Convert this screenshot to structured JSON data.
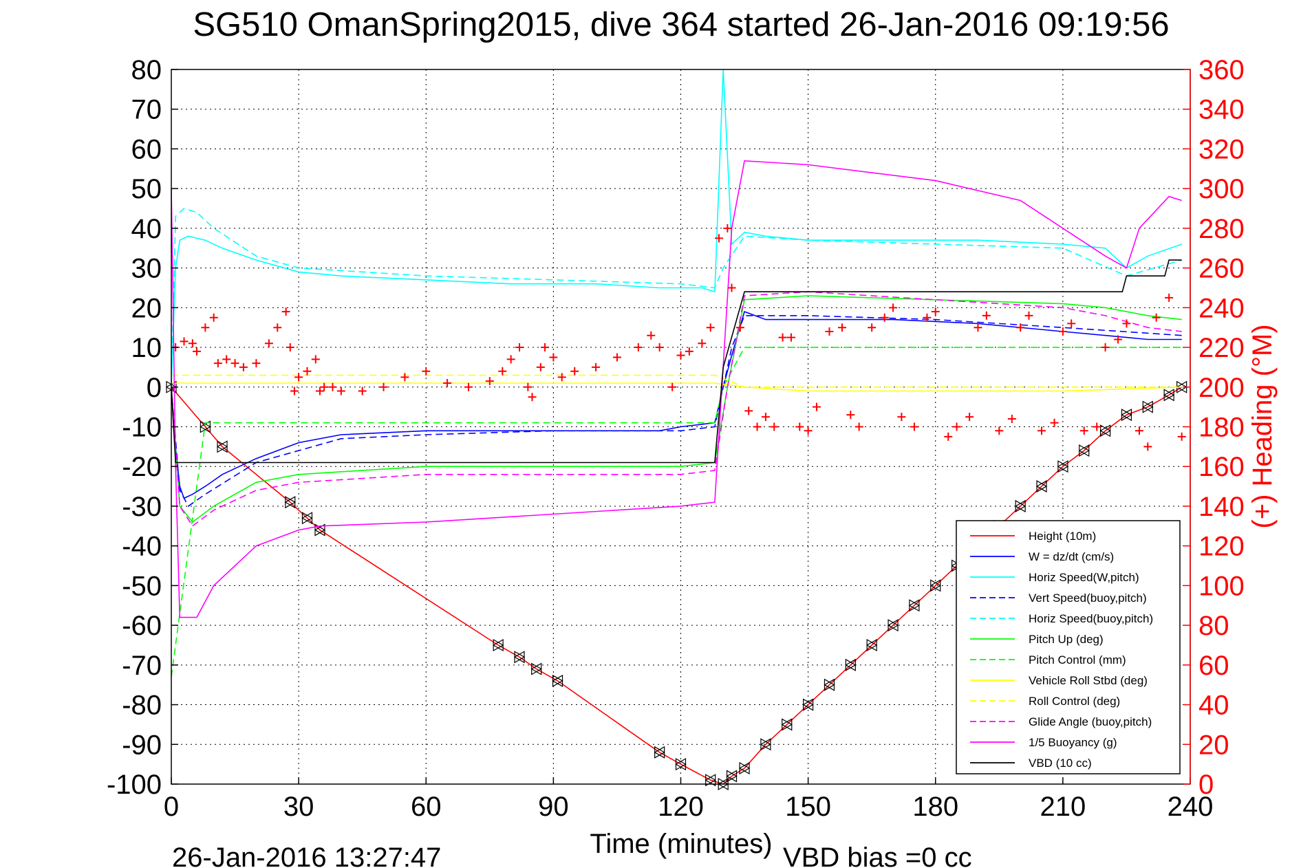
{
  "chart_data": {
    "type": "line",
    "title": "SG510 OmanSpring2015, dive 364 started 26-Jan-2016 09:19:56",
    "xlabel": "Time (minutes)",
    "ylabel": "",
    "y2label": "(+) Heading (°M)",
    "footer_left": "26-Jan-2016 13:27:47",
    "footer_right": "VBD bias =0 cc",
    "xlim": [
      0,
      240
    ],
    "ylim": [
      -100,
      80
    ],
    "y2lim": [
      0,
      360
    ],
    "grid": true,
    "legend_position": "bottom-right",
    "xticks": [
      "0",
      "30",
      "60",
      "90",
      "120",
      "150",
      "180",
      "210",
      "240"
    ],
    "yticks": [
      "80",
      "70",
      "60",
      "50",
      "40",
      "30",
      "20",
      "10",
      "0",
      "-10",
      "-20",
      "-30",
      "-40",
      "-50",
      "-60",
      "-70",
      "-80",
      "-90",
      "-100"
    ],
    "y2ticks": [
      "360",
      "340",
      "320",
      "300",
      "280",
      "260",
      "240",
      "220",
      "200",
      "180",
      "160",
      "140",
      "120",
      "100",
      "80",
      "60",
      "40",
      "20",
      "0"
    ],
    "colors": {
      "height": "#ff0000",
      "w": "#0000ff",
      "horiz_speed": "#00ffff",
      "vert_speed_buoy": "#0000ff",
      "horiz_speed_buoy": "#00ffff",
      "pitch_up": "#00ff00",
      "pitch_control": "#00ff00",
      "roll": "#ffff00",
      "roll_control": "#ffff00",
      "glide_angle": "#ff00ff",
      "buoyancy": "#ff00ff",
      "vbd": "#000000",
      "heading": "#ff0000",
      "axis_right": "#ff0000"
    },
    "legend": [
      {
        "label": "Height (10m)",
        "color": "#ff0000",
        "dash": false
      },
      {
        "label": "W = dz/dt (cm/s)",
        "color": "#0000ff",
        "dash": false
      },
      {
        "label": "Horiz Speed(W,pitch)",
        "color": "#00ffff",
        "dash": false
      },
      {
        "label": "Vert Speed(buoy,pitch)",
        "color": "#0000ff",
        "dash": true
      },
      {
        "label": "Horiz Speed(buoy,pitch)",
        "color": "#00ffff",
        "dash": true
      },
      {
        "label": "Pitch Up (deg)",
        "color": "#00ff00",
        "dash": false
      },
      {
        "label": "Pitch Control (mm)",
        "color": "#00ff00",
        "dash": true
      },
      {
        "label": "Vehicle Roll Stbd (deg)",
        "color": "#ffff00",
        "dash": false
      },
      {
        "label": "Roll Control (deg)",
        "color": "#ffff00",
        "dash": true
      },
      {
        "label": "Glide Angle (buoy,pitch)",
        "color": "#ff00ff",
        "dash": true
      },
      {
        "label": "1/5 Buoyancy (g)",
        "color": "#ff00ff",
        "dash": false
      },
      {
        "label": "VBD (10 cc)",
        "color": "#000000",
        "dash": false
      }
    ],
    "series": [
      {
        "name": "Height (10m)",
        "axis": "left",
        "x": [
          0,
          8,
          12,
          28,
          32,
          35,
          77,
          82,
          86,
          91,
          115,
          120,
          127,
          130,
          132,
          135,
          140,
          145,
          150,
          155,
          160,
          165,
          170,
          175,
          180,
          185,
          190,
          195,
          200,
          205,
          210,
          215,
          220,
          225,
          230,
          235,
          238
        ],
        "y": [
          0,
          -10,
          -15,
          -29,
          -33,
          -36,
          -65,
          -68,
          -71,
          -74,
          -92,
          -95,
          -99,
          -100,
          -98,
          -96,
          -90,
          -85,
          -80,
          -75,
          -70,
          -65,
          -60,
          -55,
          -50,
          -45,
          -40,
          -35,
          -30,
          -25,
          -20,
          -16,
          -11,
          -7,
          -5,
          -2,
          0
        ]
      },
      {
        "name": "W = dz/dt (cm/s)",
        "axis": "left",
        "x": [
          0,
          1,
          2,
          3,
          5,
          8,
          12,
          20,
          30,
          40,
          60,
          80,
          100,
          115,
          120,
          128,
          130,
          132,
          135,
          140,
          150,
          170,
          190,
          210,
          220,
          230,
          238
        ],
        "y": [
          0,
          -15,
          -25,
          -28,
          -27,
          -25,
          -22,
          -18,
          -14,
          -12,
          -11,
          -11,
          -11,
          -11,
          -10,
          -9,
          0,
          8,
          19,
          17,
          17,
          17,
          16,
          14,
          13,
          12,
          12
        ]
      },
      {
        "name": "Horiz Speed(W,pitch)",
        "axis": "left",
        "x": [
          0,
          1,
          2,
          4,
          8,
          12,
          20,
          30,
          40,
          60,
          80,
          100,
          115,
          125,
          128,
          130,
          132,
          135,
          140,
          150,
          170,
          190,
          210,
          220,
          225,
          230,
          238
        ],
        "y": [
          0,
          30,
          37,
          38,
          37,
          35,
          32,
          29,
          28,
          27,
          26,
          26,
          25,
          25,
          24,
          80,
          36,
          39,
          38,
          37,
          37,
          37,
          36,
          35,
          30,
          33,
          36
        ]
      },
      {
        "name": "Vert Speed(buoy,pitch)",
        "axis": "left",
        "x": [
          0,
          2,
          4,
          8,
          20,
          40,
          60,
          90,
          120,
          128,
          132,
          135,
          150,
          180,
          210,
          238
        ],
        "y": [
          0,
          -26,
          -30,
          -27,
          -19,
          -13,
          -12,
          -11,
          -11,
          -10,
          10,
          18,
          18,
          17,
          15,
          13
        ]
      },
      {
        "name": "Horiz Speed(buoy,pitch)",
        "axis": "left",
        "x": [
          0,
          1,
          3,
          6,
          10,
          20,
          30,
          60,
          90,
          120,
          128,
          130,
          135,
          150,
          180,
          210,
          225,
          238
        ],
        "y": [
          0,
          43,
          45,
          44,
          40,
          33,
          30,
          28,
          27,
          26,
          25,
          30,
          38,
          37,
          36,
          35,
          28,
          32
        ]
      },
      {
        "name": "Pitch Up (deg)",
        "axis": "left",
        "x": [
          0,
          2,
          5,
          10,
          20,
          30,
          60,
          90,
          120,
          128,
          131,
          135,
          150,
          180,
          210,
          220,
          230,
          238
        ],
        "y": [
          0,
          -30,
          -34,
          -30,
          -24,
          -22,
          -20,
          -20,
          -20,
          -19,
          0,
          22,
          23,
          22,
          21,
          20,
          18,
          17
        ]
      },
      {
        "name": "Pitch Control (mm)",
        "axis": "left",
        "x": [
          0,
          8,
          30,
          60,
          90,
          128,
          130,
          135,
          150,
          180,
          210,
          238
        ],
        "y": [
          -73,
          -9,
          -9,
          -9,
          -9,
          -9,
          0,
          10,
          10,
          10,
          10,
          10
        ]
      },
      {
        "name": "Vehicle Roll Stbd (deg)",
        "axis": "left",
        "x": [
          0,
          30,
          60,
          90,
          120,
          128,
          135,
          150,
          180,
          210,
          238
        ],
        "y": [
          1,
          1,
          1,
          1,
          1,
          1,
          0,
          -1,
          -1,
          -1,
          0
        ]
      },
      {
        "name": "Roll Control (deg)",
        "axis": "left",
        "x": [
          0,
          60,
          128,
          135,
          180,
          238
        ],
        "y": [
          3,
          3,
          3,
          0,
          0,
          0
        ]
      },
      {
        "name": "Glide Angle (buoy,pitch)",
        "axis": "left",
        "x": [
          0,
          2,
          5,
          10,
          20,
          30,
          60,
          90,
          120,
          128,
          131,
          135,
          150,
          180,
          210,
          220,
          230,
          238
        ],
        "y": [
          0,
          -30,
          -35,
          -31,
          -26,
          -24,
          -22,
          -22,
          -22,
          -21,
          0,
          23,
          24,
          22,
          20,
          18,
          15,
          14
        ]
      },
      {
        "name": "1/5 Buoyancy (g)",
        "axis": "left",
        "x": [
          0,
          1,
          2,
          6,
          10,
          20,
          30,
          35,
          60,
          90,
          120,
          128,
          132,
          135,
          150,
          180,
          200,
          210,
          220,
          225,
          228,
          235,
          238
        ],
        "y": [
          50,
          -20,
          -58,
          -58,
          -50,
          -40,
          -36,
          -35,
          -34,
          -32,
          -30,
          -29,
          40,
          57,
          56,
          52,
          47,
          40,
          33,
          30,
          40,
          48,
          47
        ]
      },
      {
        "name": "VBD (10 cc)",
        "axis": "left",
        "x": [
          0,
          1,
          30,
          60,
          90,
          120,
          128,
          130,
          135,
          150,
          180,
          210,
          220,
          224,
          225,
          234,
          235,
          238
        ],
        "y": [
          0,
          -19,
          -19,
          -19,
          -19,
          -19,
          -19,
          5,
          24,
          24,
          24,
          24,
          24,
          24,
          28,
          28,
          32,
          32
        ]
      },
      {
        "name": "(+) Heading (°M)",
        "axis": "right",
        "marker": "+",
        "line": false,
        "x": [
          1,
          3,
          5,
          6,
          8,
          10,
          11,
          13,
          15,
          17,
          20,
          23,
          25,
          27,
          28,
          29,
          30,
          32,
          34,
          35,
          36,
          38,
          40,
          45,
          50,
          55,
          60,
          65,
          70,
          75,
          78,
          80,
          82,
          84,
          85,
          87,
          88,
          90,
          92,
          95,
          100,
          105,
          110,
          113,
          115,
          118,
          120,
          122,
          125,
          127,
          129,
          131,
          132,
          134,
          136,
          138,
          140,
          142,
          144,
          146,
          148,
          150,
          152,
          155,
          158,
          160,
          162,
          165,
          168,
          170,
          172,
          175,
          178,
          180,
          183,
          185,
          188,
          190,
          192,
          195,
          198,
          200,
          202,
          205,
          208,
          210,
          212,
          215,
          218,
          220,
          223,
          225,
          228,
          230,
          232,
          235,
          238
        ],
        "y": [
          220,
          223,
          222,
          218,
          230,
          235,
          212,
          214,
          212,
          210,
          212,
          222,
          230,
          238,
          220,
          198,
          205,
          208,
          214,
          198,
          200,
          200,
          198,
          198,
          200,
          205,
          208,
          202,
          200,
          203,
          208,
          214,
          220,
          200,
          195,
          210,
          220,
          215,
          205,
          208,
          210,
          215,
          220,
          226,
          220,
          200,
          216,
          218,
          222,
          230,
          275,
          280,
          250,
          230,
          188,
          180,
          185,
          180,
          225,
          225,
          180,
          178,
          190,
          228,
          230,
          186,
          180,
          230,
          235,
          240,
          185,
          180,
          235,
          238,
          175,
          180,
          185,
          230,
          236,
          178,
          184,
          230,
          236,
          178,
          182,
          228,
          232,
          178,
          180,
          220,
          224,
          232,
          178,
          170,
          235,
          245,
          175
        ]
      }
    ]
  }
}
